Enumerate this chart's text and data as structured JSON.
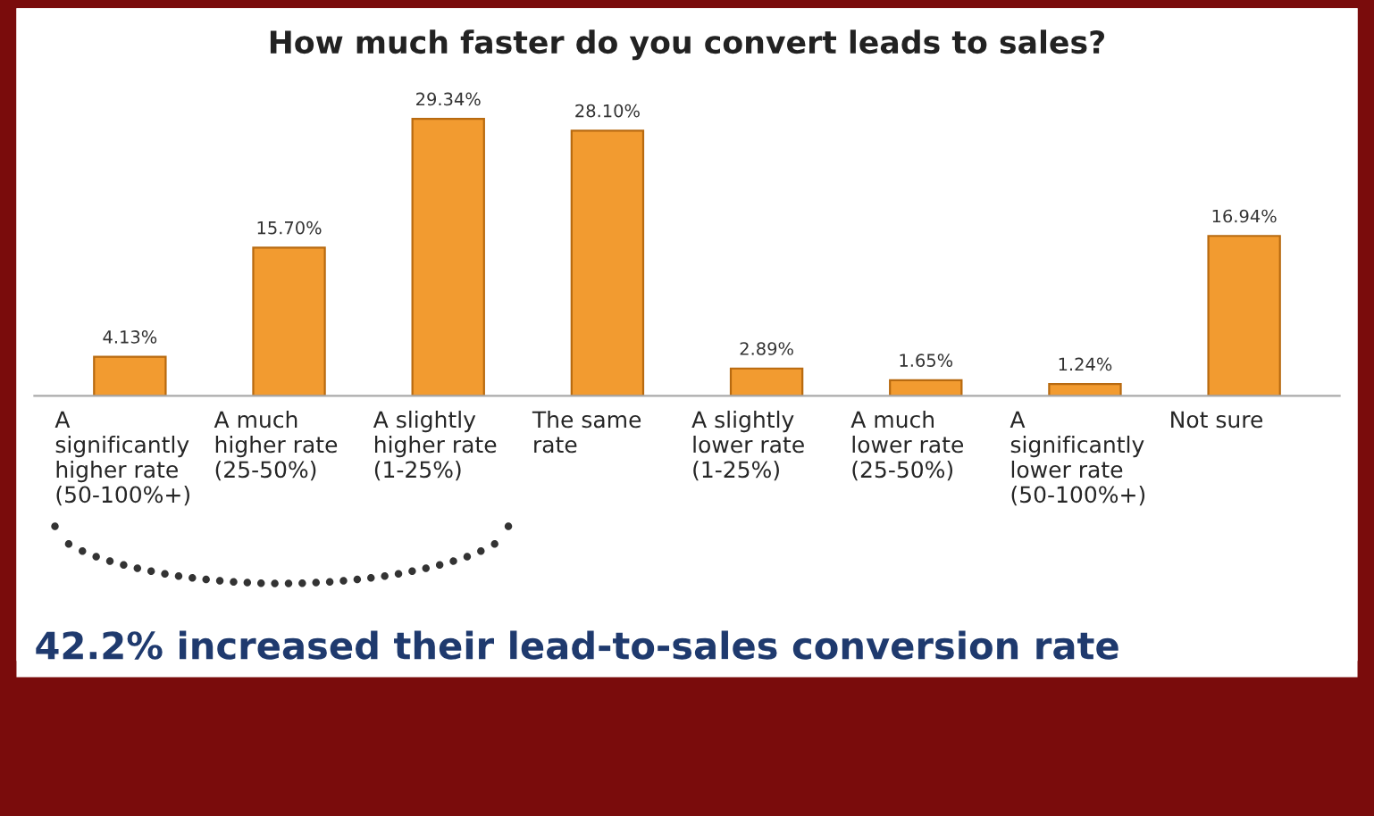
{
  "chart_data": {
    "type": "bar",
    "title": "How much faster do you convert leads to sales?",
    "categories": [
      "A\nsignificantly\nhigher rate\n(50-100%+)",
      "A much\nhigher rate\n(25-50%)",
      "A slightly\nhigher rate\n(1-25%)",
      "The same\nrate",
      "A slightly\nlower rate\n(1-25%)",
      "A much\nlower rate\n(25-50%)",
      "A\nsignificantly\nlower rate\n(50-100%+)",
      "Not sure"
    ],
    "values": [
      4.13,
      15.7,
      29.34,
      28.1,
      2.89,
      1.65,
      1.24,
      16.94
    ],
    "value_labels": [
      "4.13%",
      "15.70%",
      "29.34%",
      "28.10%",
      "2.89%",
      "1.65%",
      "1.24%",
      "16.94%"
    ],
    "color": "#f29b30",
    "tick_labels": "x",
    "annotations": [
      "42.2% increased their lead-to-sales conversion rate"
    ]
  }
}
